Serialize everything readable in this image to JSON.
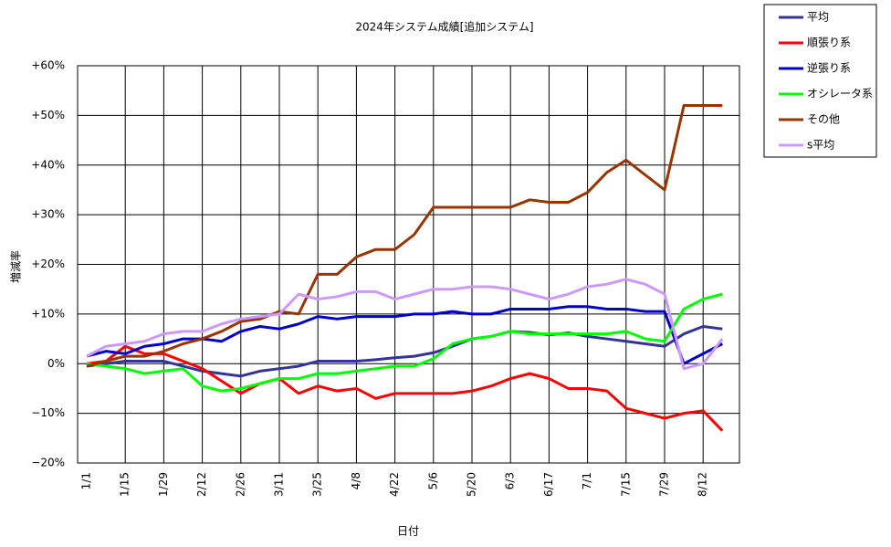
{
  "chart_data": {
    "type": "line",
    "title": "2024年システム成績[追加システム]",
    "x_label": "日付",
    "y_label": "増減率",
    "categories": [
      "1/1",
      null,
      "1/15",
      null,
      "1/29",
      null,
      "2/12",
      null,
      "2/26",
      null,
      "3/11",
      null,
      "3/25",
      null,
      "4/8",
      null,
      "4/22",
      null,
      "5/6",
      null,
      "5/20",
      null,
      "6/3",
      null,
      "6/17",
      null,
      "7/1",
      null,
      "7/15",
      null,
      "7/29",
      null,
      "8/12",
      null
    ],
    "series": [
      {
        "name": "平均",
        "color": "#333399",
        "values": [
          -0.5,
          0,
          0.5,
          0.5,
          0.5,
          -0.5,
          -1.5,
          -2,
          -2.5,
          -1.5,
          -1,
          -0.5,
          0.5,
          0.5,
          0.5,
          0.8,
          1.2,
          1.5,
          2.2,
          3.5,
          5,
          5.5,
          6.5,
          6.3,
          5.8,
          6.2,
          5.5,
          5,
          4.5,
          4,
          3.5,
          6,
          7.5,
          7
        ]
      },
      {
        "name": "順張り系",
        "color": "#ff0000",
        "values": [
          0,
          0.5,
          3.5,
          2,
          2,
          0.5,
          -1,
          -3.5,
          -6,
          -4,
          -3,
          -6,
          -4.5,
          -5.5,
          -5,
          -7,
          -6,
          -6,
          -6,
          -6,
          -5.5,
          -4.5,
          -3,
          -2,
          -3,
          -5,
          -5,
          -5.5,
          -9,
          -10,
          -11,
          -10,
          -9.5,
          -13.5
        ]
      },
      {
        "name": "逆張り系",
        "color": "#0000cc",
        "values": [
          1.5,
          2.5,
          2,
          3.5,
          4,
          5,
          5,
          4.5,
          6.5,
          7.5,
          7,
          8,
          9.5,
          9,
          9.5,
          9.5,
          9.5,
          10,
          10,
          10.5,
          10,
          10,
          11,
          11,
          11,
          11.5,
          11.5,
          11,
          11,
          10.5,
          10.5,
          0,
          2,
          4
        ]
      },
      {
        "name": "オシレータ系",
        "color": "#00ff00",
        "values": [
          0,
          -0.5,
          -1,
          -2,
          -1.5,
          -1,
          -4.5,
          -5.5,
          -5,
          -4,
          -3,
          -3,
          -2,
          -2,
          -1.5,
          -1,
          -0.5,
          -0.5,
          1,
          4,
          5,
          5.5,
          6.5,
          6,
          6,
          6,
          6,
          6,
          6.5,
          5,
          4.5,
          11,
          13,
          14
        ]
      },
      {
        "name": "その他",
        "color": "#993300",
        "values": [
          -0.5,
          0.5,
          1.5,
          1.5,
          2.5,
          4,
          5,
          6.5,
          8.5,
          9,
          10.5,
          10,
          18,
          18,
          21.5,
          23,
          23,
          26,
          31.5,
          31.5,
          31.5,
          31.5,
          31.5,
          33,
          32.5,
          32.5,
          34.5,
          38.5,
          41,
          38,
          35,
          52,
          52,
          52
        ]
      },
      {
        "name": "s平均",
        "color": "#cc99ff",
        "values": [
          1.5,
          3.5,
          4,
          4.5,
          6,
          6.5,
          6.5,
          8,
          9,
          9.5,
          10,
          14,
          13,
          13.5,
          14.5,
          14.5,
          13,
          14,
          15,
          15,
          15.5,
          15.5,
          15,
          14,
          13,
          14,
          15.5,
          16,
          17,
          16,
          14,
          -1,
          0,
          5
        ]
      }
    ],
    "ylim": [
      -20,
      60
    ],
    "yticks": [
      {
        "value": -20,
        "label": "−20%"
      },
      {
        "value": -10,
        "label": "−10%"
      },
      {
        "value": 0,
        "label": "0%"
      },
      {
        "value": 10,
        "label": "+10%"
      },
      {
        "value": 20,
        "label": "+20%"
      },
      {
        "value": 30,
        "label": "+30%"
      },
      {
        "value": 40,
        "label": "+40%"
      },
      {
        "value": 50,
        "label": "+50%"
      },
      {
        "value": 60,
        "label": "+60%"
      }
    ],
    "grid": true
  }
}
